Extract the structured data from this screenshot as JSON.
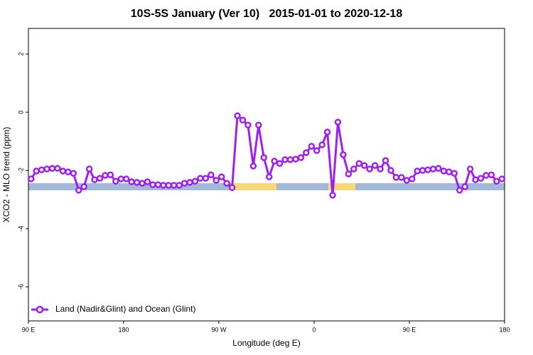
{
  "chart_data": {
    "type": "line",
    "title": "10S-5S January (Ver 10)   2015-01-01 to 2020-12-18",
    "xlabel": "Longitude (deg E)",
    "ylabel": "XCO2 - MLO trend (ppm)",
    "xlim": [
      90,
      540
    ],
    "xticks": [
      {
        "value": 90,
        "label": "90 E"
      },
      {
        "value": 180,
        "label": "180"
      },
      {
        "value": 270,
        "label": "90 W"
      },
      {
        "value": 360,
        "label": "0"
      },
      {
        "value": 450,
        "label": "90 E"
      },
      {
        "value": 540,
        "label": "180"
      }
    ],
    "ylim": [
      -7.17,
      2.88
    ],
    "yticks": [
      2,
      0,
      -2,
      -4,
      -6
    ],
    "legend": "bottom-left",
    "x": [
      92.5,
      97.5,
      102.5,
      107.5,
      112.5,
      117.5,
      122.5,
      127.5,
      132.5,
      137.5,
      142.5,
      147.5,
      152.5,
      157.5,
      162.5,
      167.5,
      172.5,
      177.5,
      182.5,
      187.5,
      192.5,
      197.5,
      202.5,
      207.5,
      212.5,
      217.5,
      222.5,
      227.5,
      232.5,
      237.5,
      242.5,
      247.5,
      252.5,
      257.5,
      262.5,
      267.5,
      272.5,
      277.5,
      282.5,
      287.5,
      292.5,
      297.5,
      302.5,
      307.5,
      312.5,
      317.5,
      322.5,
      327.5,
      332.5,
      337.5,
      342.5,
      347.5,
      352.5,
      357.5,
      362.5,
      367.5,
      372.5,
      377.5,
      382.5,
      387.5,
      392.5,
      397.5,
      402.5,
      407.5,
      412.5,
      417.5,
      422.5,
      427.5,
      432.5,
      437.5,
      442.5,
      447.5,
      452.5,
      457.5,
      462.5,
      467.5,
      472.5,
      477.5,
      482.5,
      487.5,
      492.5,
      497.5,
      502.5,
      507.5,
      512.5,
      517.5,
      522.5,
      527.5,
      532.5,
      537.5
    ],
    "series": [
      {
        "name": "Land (Nadir&Glint) and Ocean (Glint)",
        "color": "#a020f0",
        "values": [
          -2.29,
          -2.02,
          -1.98,
          -1.95,
          -1.93,
          -1.93,
          -2.02,
          -2.05,
          -2.1,
          -2.68,
          -2.56,
          -1.95,
          -2.32,
          -2.27,
          -2.17,
          -2.15,
          -2.37,
          -2.29,
          -2.29,
          -2.39,
          -2.41,
          -2.44,
          -2.39,
          -2.49,
          -2.49,
          -2.51,
          -2.51,
          -2.51,
          -2.51,
          -2.44,
          -2.41,
          -2.37,
          -2.27,
          -2.27,
          -2.15,
          -2.34,
          -2.22,
          -2.44,
          -2.59,
          -0.12,
          -0.27,
          -0.44,
          -1.85,
          -0.44,
          -1.56,
          -2.22,
          -1.68,
          -1.76,
          -1.63,
          -1.63,
          -1.61,
          -1.56,
          -1.39,
          -1.17,
          -1.32,
          -1.12,
          -0.68,
          -2.85,
          -0.34,
          -1.46,
          -2.12,
          -1.95,
          -1.76,
          -1.83,
          -1.95,
          -1.83,
          -1.95,
          -1.66,
          -2.0,
          -2.24,
          -2.24,
          -2.34,
          -2.29,
          -2.02,
          -2.0,
          -1.98,
          -1.95,
          -1.93,
          -2.02,
          -2.05,
          -2.1,
          -2.68,
          -2.56,
          -1.95,
          -2.32,
          -2.27,
          -2.17,
          -2.15,
          -2.37,
          -2.29
        ]
      }
    ]
  }
}
